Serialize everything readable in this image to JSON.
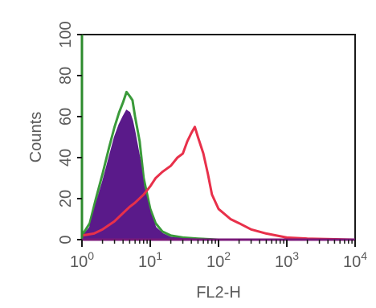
{
  "chart_data": {
    "type": "area",
    "title": "",
    "xlabel": "FL2-H",
    "ylabel": "Counts",
    "xscale": "log",
    "xlim": [
      1,
      10000
    ],
    "ylim": [
      0,
      100
    ],
    "grid": false,
    "legend": "none",
    "x_ticks": [
      {
        "value": 1,
        "base": "10",
        "exp": "0"
      },
      {
        "value": 10,
        "base": "10",
        "exp": "1"
      },
      {
        "value": 100,
        "base": "10",
        "exp": "2"
      },
      {
        "value": 1000,
        "base": "10",
        "exp": "3"
      },
      {
        "value": 10000,
        "base": "10",
        "exp": "4"
      }
    ],
    "y_ticks": [
      {
        "value": 0,
        "label": "0"
      },
      {
        "value": 20,
        "label": "20"
      },
      {
        "value": 40,
        "label": "40"
      },
      {
        "value": 60,
        "label": "60"
      },
      {
        "value": 80,
        "label": "80"
      },
      {
        "value": 100,
        "label": "100"
      }
    ],
    "series": [
      {
        "style": "outline",
        "color": "#3a9a3a",
        "x": [
          1,
          1.3,
          1.6,
          2,
          2.5,
          3,
          3.5,
          4,
          4.5,
          5,
          5.5,
          6,
          7,
          8,
          10,
          12,
          15,
          20,
          30,
          50,
          100,
          10000
        ],
        "y": [
          2,
          8,
          20,
          32,
          45,
          55,
          62,
          67,
          72,
          70,
          68,
          60,
          48,
          30,
          15,
          8,
          4,
          2,
          1,
          0.5,
          0,
          0
        ]
      },
      {
        "style": "filled",
        "color": "#5a1a8a",
        "x": [
          1,
          1.3,
          1.6,
          2,
          2.5,
          3,
          3.5,
          4,
          4.5,
          5,
          5.5,
          6,
          7,
          8,
          10,
          12,
          15,
          20,
          30,
          100,
          10000
        ],
        "y": [
          1,
          6,
          17,
          28,
          40,
          50,
          56,
          60,
          63,
          62,
          58,
          52,
          40,
          26,
          13,
          6,
          3,
          1,
          0.5,
          0,
          0
        ]
      },
      {
        "style": "outline",
        "color": "#e8304a",
        "x": [
          1,
          1.5,
          2,
          3,
          4,
          5,
          6,
          8,
          10,
          12,
          15,
          20,
          25,
          30,
          35,
          40,
          45,
          50,
          60,
          70,
          80,
          100,
          150,
          200,
          300,
          500,
          1000,
          2000,
          10000
        ],
        "y": [
          2,
          3,
          5,
          9,
          13,
          16,
          18,
          22,
          26,
          30,
          33,
          36,
          40,
          42,
          48,
          52,
          55,
          50,
          42,
          32,
          22,
          15,
          10,
          8,
          5,
          3,
          1,
          0.5,
          0
        ]
      }
    ]
  }
}
